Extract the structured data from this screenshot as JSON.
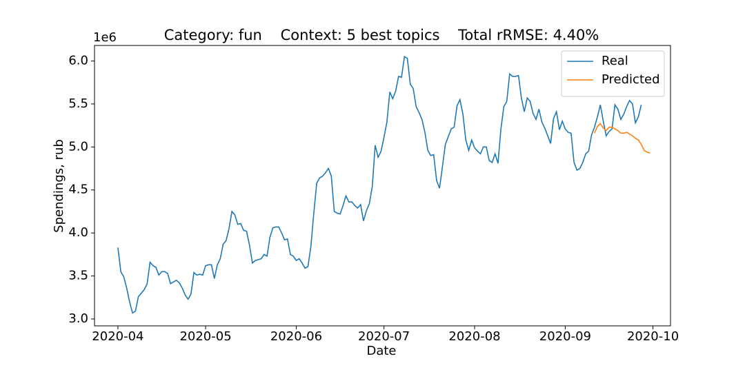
{
  "chart_data": {
    "type": "line",
    "title": "Category: fun    Context: 5 best topics    Total rRMSE: 4.40%",
    "xlabel": "Date",
    "ylabel": "Spendings, rub",
    "y_offset_label": "1e6",
    "xlim": [
      "2020-03-24",
      "2020-10-07"
    ],
    "xticks": [
      "2020-04",
      "2020-05",
      "2020-06",
      "2020-07",
      "2020-08",
      "2020-09",
      "2020-10"
    ],
    "ylim": [
      2.92,
      6.18
    ],
    "yticks": [
      {
        "value": 3,
        "label": "3.0"
      },
      3.5,
      {
        "value": 4,
        "label": "4.0"
      },
      4.5,
      {
        "value": 5,
        "label": "5.0"
      },
      5.5,
      {
        "value": 6,
        "label": "6.0"
      }
    ],
    "grid": false,
    "legend": "upper right",
    "series": [
      {
        "name": "Real",
        "color": "#1f77b4",
        "x": [
          "2020-04-01",
          "2020-04-02",
          "2020-04-03",
          "2020-04-04",
          "2020-04-05",
          "2020-04-06",
          "2020-04-07",
          "2020-04-08",
          "2020-04-09",
          "2020-04-10",
          "2020-04-11",
          "2020-04-12",
          "2020-04-13",
          "2020-04-14",
          "2020-04-15",
          "2020-04-16",
          "2020-04-17",
          "2020-04-18",
          "2020-04-19",
          "2020-04-20",
          "2020-04-21",
          "2020-04-22",
          "2020-04-23",
          "2020-04-24",
          "2020-04-25",
          "2020-04-26",
          "2020-04-27",
          "2020-04-28",
          "2020-04-29",
          "2020-04-30",
          "2020-05-01",
          "2020-05-02",
          "2020-05-03",
          "2020-05-04",
          "2020-05-05",
          "2020-05-06",
          "2020-05-07",
          "2020-05-08",
          "2020-05-09",
          "2020-05-10",
          "2020-05-11",
          "2020-05-12",
          "2020-05-13",
          "2020-05-14",
          "2020-05-15",
          "2020-05-16",
          "2020-05-17",
          "2020-05-18",
          "2020-05-19",
          "2020-05-20",
          "2020-05-21",
          "2020-05-22",
          "2020-05-23",
          "2020-05-24",
          "2020-05-25",
          "2020-05-26",
          "2020-05-27",
          "2020-05-28",
          "2020-05-29",
          "2020-05-30",
          "2020-05-31",
          "2020-06-01",
          "2020-06-02",
          "2020-06-03",
          "2020-06-04",
          "2020-06-05",
          "2020-06-06",
          "2020-06-07",
          "2020-06-08",
          "2020-06-09",
          "2020-06-10",
          "2020-06-11",
          "2020-06-12",
          "2020-06-13",
          "2020-06-14",
          "2020-06-15",
          "2020-06-16",
          "2020-06-17",
          "2020-06-18",
          "2020-06-19",
          "2020-06-20",
          "2020-06-21",
          "2020-06-22",
          "2020-06-23",
          "2020-06-24",
          "2020-06-25",
          "2020-06-26",
          "2020-06-27",
          "2020-06-28",
          "2020-06-29",
          "2020-06-30",
          "2020-07-01",
          "2020-07-02",
          "2020-07-03",
          "2020-07-04",
          "2020-07-05",
          "2020-07-06",
          "2020-07-07",
          "2020-07-08",
          "2020-07-09",
          "2020-07-10",
          "2020-07-11",
          "2020-07-12",
          "2020-07-13",
          "2020-07-14",
          "2020-07-15",
          "2020-07-16",
          "2020-07-17",
          "2020-07-18",
          "2020-07-19",
          "2020-07-20",
          "2020-07-21",
          "2020-07-22",
          "2020-07-23",
          "2020-07-24",
          "2020-07-25",
          "2020-07-26",
          "2020-07-27",
          "2020-07-28",
          "2020-07-29",
          "2020-07-30",
          "2020-07-31",
          "2020-08-01",
          "2020-08-02",
          "2020-08-03",
          "2020-08-04",
          "2020-08-05",
          "2020-08-06",
          "2020-08-07",
          "2020-08-08",
          "2020-08-09",
          "2020-08-10",
          "2020-08-11",
          "2020-08-12",
          "2020-08-13",
          "2020-08-14",
          "2020-08-15",
          "2020-08-16",
          "2020-08-17",
          "2020-08-18",
          "2020-08-19",
          "2020-08-20",
          "2020-08-21",
          "2020-08-22",
          "2020-08-23",
          "2020-08-24",
          "2020-08-25",
          "2020-08-26",
          "2020-08-27",
          "2020-08-28",
          "2020-08-29",
          "2020-08-30",
          "2020-08-31",
          "2020-09-01",
          "2020-09-02",
          "2020-09-03",
          "2020-09-04",
          "2020-09-05",
          "2020-09-06",
          "2020-09-07",
          "2020-09-08",
          "2020-09-09",
          "2020-09-10",
          "2020-09-11",
          "2020-09-12",
          "2020-09-13",
          "2020-09-14",
          "2020-09-15",
          "2020-09-16",
          "2020-09-17",
          "2020-09-18",
          "2020-09-19",
          "2020-09-20",
          "2020-09-21",
          "2020-09-22",
          "2020-09-23",
          "2020-09-24",
          "2020-09-25",
          "2020-09-26",
          "2020-09-27"
        ],
        "values": [
          3.83,
          3.55,
          3.49,
          3.36,
          3.2,
          3.07,
          3.09,
          3.26,
          3.3,
          3.34,
          3.41,
          3.66,
          3.62,
          3.6,
          3.51,
          3.55,
          3.55,
          3.53,
          3.41,
          3.43,
          3.45,
          3.42,
          3.36,
          3.28,
          3.23,
          3.29,
          3.54,
          3.51,
          3.52,
          3.51,
          3.62,
          3.63,
          3.63,
          3.47,
          3.63,
          3.7,
          3.87,
          3.91,
          4.05,
          4.25,
          4.21,
          4.1,
          4.11,
          4.03,
          4.02,
          3.86,
          3.65,
          3.68,
          3.69,
          3.7,
          3.75,
          3.73,
          3.95,
          4.06,
          4.07,
          4.07,
          4.0,
          3.92,
          3.93,
          3.75,
          3.73,
          3.68,
          3.7,
          3.65,
          3.59,
          3.61,
          3.84,
          4.23,
          4.58,
          4.64,
          4.66,
          4.7,
          4.75,
          4.66,
          4.25,
          4.23,
          4.22,
          4.32,
          4.43,
          4.36,
          4.36,
          4.32,
          4.29,
          4.33,
          4.14,
          4.26,
          4.34,
          4.54,
          5.02,
          4.88,
          4.95,
          5.11,
          5.29,
          5.64,
          5.56,
          5.65,
          5.82,
          5.81,
          6.05,
          6.03,
          5.73,
          5.68,
          5.47,
          5.4,
          5.32,
          5.17,
          4.96,
          4.9,
          4.91,
          4.61,
          4.52,
          4.77,
          5.03,
          5.12,
          5.21,
          5.23,
          5.48,
          5.55,
          5.38,
          5.08,
          4.96,
          5.08,
          4.99,
          4.95,
          4.92,
          5.0,
          5.0,
          4.84,
          4.82,
          4.92,
          4.81,
          5.21,
          5.47,
          5.53,
          5.85,
          5.82,
          5.82,
          5.83,
          5.57,
          5.41,
          5.57,
          5.53,
          5.39,
          5.32,
          5.44,
          5.29,
          5.22,
          5.13,
          5.04,
          5.33,
          5.41,
          5.2,
          5.3,
          5.21,
          5.17,
          5.16,
          4.82,
          4.73,
          4.75,
          4.82,
          4.92,
          4.95,
          5.14,
          5.23,
          5.35,
          5.49,
          5.3,
          5.13,
          5.18,
          5.21,
          5.49,
          5.44,
          5.32,
          5.38,
          5.47,
          5.54,
          5.5,
          5.28,
          5.35,
          5.49
        ]
      },
      {
        "name": "Predicted",
        "color": "#ff7f0e",
        "x": [
          "2020-09-11",
          "2020-09-12",
          "2020-09-13",
          "2020-09-14",
          "2020-09-15",
          "2020-09-16",
          "2020-09-17",
          "2020-09-18",
          "2020-09-19",
          "2020-09-20",
          "2020-09-21",
          "2020-09-22",
          "2020-09-23",
          "2020-09-24",
          "2020-09-25",
          "2020-09-26",
          "2020-09-27",
          "2020-09-28",
          "2020-09-29",
          "2020-09-30"
        ],
        "values": [
          5.16,
          5.24,
          5.27,
          5.22,
          5.19,
          5.23,
          5.23,
          5.21,
          5.19,
          5.16,
          5.16,
          5.17,
          5.15,
          5.13,
          5.1,
          5.08,
          5.03,
          4.96,
          4.94,
          4.93
        ]
      }
    ]
  }
}
